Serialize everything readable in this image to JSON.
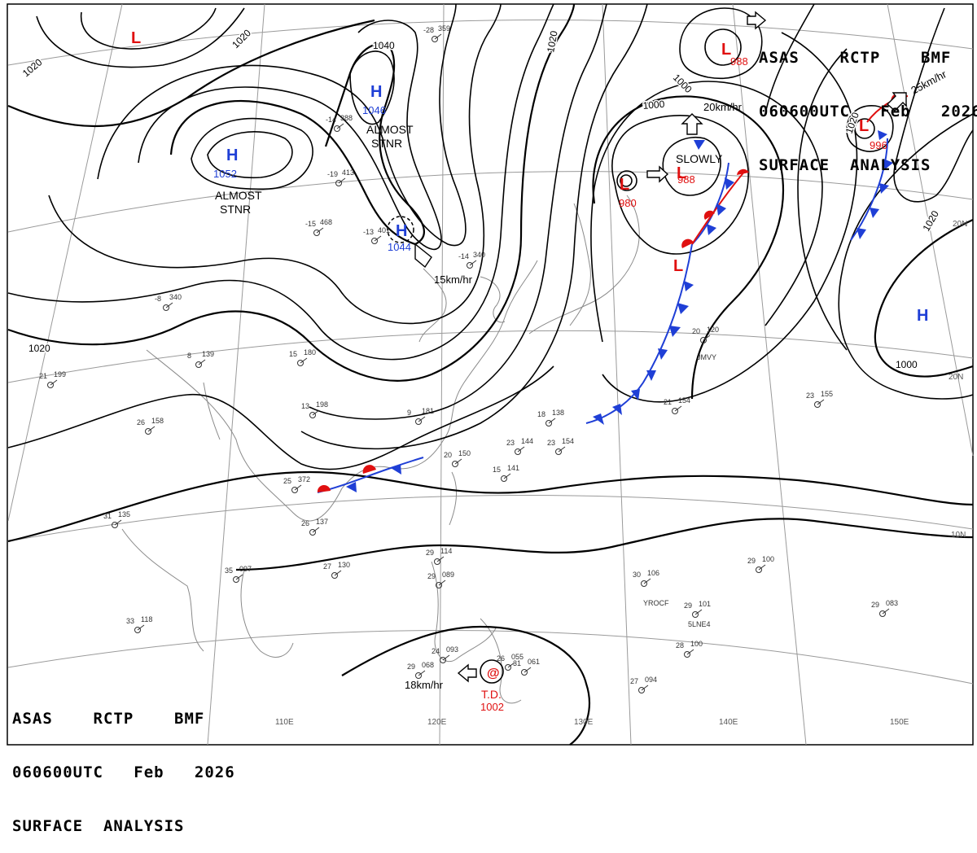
{
  "header": {
    "line1": "ASAS    RCTP    BMF",
    "line2": "060600UTC   Feb   2026",
    "line3": "SURFACE  ANALYSIS"
  },
  "colors": {
    "high": "#1f3fd6",
    "low": "#e01010",
    "warm_front": "#e01010",
    "cold_front": "#1f3fd6",
    "isobar": "#000000",
    "coast": "#8a8a8a",
    "grid": "#9a9a9a"
  },
  "isobar_labels": [
    "1020",
    "1020",
    "1020",
    "1040",
    "1020",
    "1000",
    "1000",
    "1000",
    "1020",
    "1020"
  ],
  "pressure_systems": [
    {
      "type": "H",
      "value": "1046"
    },
    {
      "type": "H",
      "value": "1052"
    },
    {
      "type": "H",
      "value": "1044"
    },
    {
      "type": "H",
      "value": ""
    },
    {
      "type": "L",
      "value": ""
    },
    {
      "type": "L",
      "value": "988"
    },
    {
      "type": "L",
      "value": "980"
    },
    {
      "type": "L",
      "value": "988"
    },
    {
      "type": "L",
      "value": "996"
    },
    {
      "type": "L",
      "value": ""
    },
    {
      "type": "T.D.",
      "value": "1002"
    }
  ],
  "annotations": {
    "almost_stnr_1": "ALMOST\nSTNR",
    "almost_stnr_2": "ALMOST\nSTNR",
    "slowly": "SLOWLY",
    "speed_15": "15km/hr",
    "speed_20": "20km/hr",
    "speed_25": "25km/hr",
    "speed_18": "18km/hr",
    "td_label": "T.D."
  },
  "lat_labels": [
    "20N",
    "20N",
    "10N"
  ],
  "lon_labels": [
    "110E",
    "120E",
    "130E",
    "140E",
    "150E"
  ],
  "stations": [
    {
      "t": "-28",
      "p": "359"
    },
    {
      "t": "-14",
      "p": "388"
    },
    {
      "t": "-19",
      "p": "413"
    },
    {
      "t": "-15",
      "p": "468"
    },
    {
      "t": "-13",
      "p": "401"
    },
    {
      "t": "-14",
      "p": "340"
    },
    {
      "t": "-8",
      "p": "340"
    },
    {
      "t": "8",
      "p": "139"
    },
    {
      "t": "15",
      "p": "180"
    },
    {
      "t": "9",
      "p": "181"
    },
    {
      "t": "13",
      "p": "198"
    },
    {
      "t": "26",
      "p": "158"
    },
    {
      "t": "20",
      "p": "150"
    },
    {
      "t": "23",
      "p": "144"
    },
    {
      "t": "23",
      "p": "154"
    },
    {
      "t": "18",
      "p": "138"
    },
    {
      "t": "21",
      "p": "154"
    },
    {
      "t": "20",
      "p": "120"
    },
    {
      "t": "23",
      "p": "155"
    },
    {
      "t": "26",
      "p": "137"
    },
    {
      "t": "27",
      "p": "130"
    },
    {
      "t": "35",
      "p": "097"
    },
    {
      "t": "29",
      "p": "114"
    },
    {
      "t": "29",
      "p": "089"
    },
    {
      "t": "30",
      "p": "106"
    },
    {
      "t": "29",
      "p": "101"
    },
    {
      "t": "28",
      "p": "100"
    },
    {
      "t": "29",
      "p": "100"
    },
    {
      "t": "29",
      "p": "083"
    },
    {
      "t": "27",
      "p": "094"
    },
    {
      "t": "29",
      "p": "068"
    },
    {
      "t": "24",
      "p": "093"
    },
    {
      "t": "26",
      "p": "055"
    },
    {
      "t": "31",
      "p": "061"
    },
    {
      "t": "21",
      "p": "199"
    },
    {
      "t": "31",
      "p": "135"
    },
    {
      "t": "33",
      "p": "118"
    },
    {
      "t": "25",
      "p": "372"
    },
    {
      "t": "15",
      "p": "141"
    }
  ],
  "station_ids": [
    "JMVY",
    "YROCF",
    "5LNE4"
  ]
}
